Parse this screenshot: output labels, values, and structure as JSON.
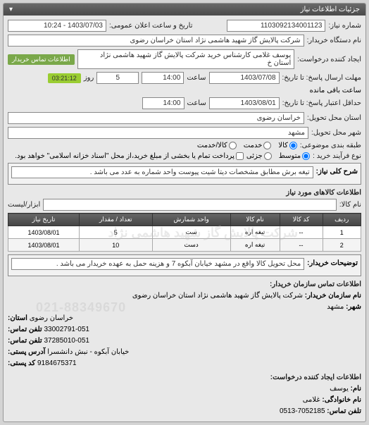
{
  "panel_title": "جزئیات اطلاعات نیاز",
  "top": {
    "req_number_label": "شماره نیاز:",
    "req_number": "1103092134001123",
    "public_date_label": "تاریخ و ساعت اعلان عمومی:",
    "public_date": "1403/07/03 - 10:24",
    "org_label": "نام دستگاه خریدار:",
    "org": "شرکت پالایش گاز شهید هاشمی نژاد   استان خراسان رضوی",
    "creator_label": "ایجاد کننده درخواست:",
    "creator": "یوسف غلامی کارشناس خرید شرکت پالایش گاز شهید هاشمی نژاد   استان خ",
    "contact_badge": "اطلاعات تماس خریدار",
    "deadline_label": "مهلت ارسال پاسخ: تا تاریخ:",
    "deadline_date": "1403/07/08",
    "time_label": "ساعت",
    "deadline_time": "14:00",
    "days_remaining": "5",
    "day_word": "روز",
    "time_remaining": "03:21:12",
    "remaining_label": "ساعت باقی مانده",
    "validity_label": "حداقل اعتبار پاسخ: تا تاریخ:",
    "validity_date": "1403/08/01",
    "validity_time": "14:00",
    "province_label": "استان محل تحویل:",
    "province": "خراسان رضوی",
    "city_label": "شهر محل تحویل:",
    "city": "مشهد",
    "sort_label": "طبقه بندی موضوعی:",
    "sort_opts": {
      "goods": "کالا",
      "service": "خدمت",
      "both": "کالا/خدمت"
    },
    "qtype_label": "نوع فرآیند خرید :",
    "qtype_opts": {
      "mid": "متوسط",
      "small": "جزئی"
    },
    "qtype_note": "پرداخت تمام یا بخشی از مبلغ خرید،از محل \"اسناد خزانه اسلامی\" خواهد بود.",
    "desc_label": "شرح کلی نیاز:",
    "desc": "تیغه برش مطابق مشخصات دیتا شیت پیوست واحد شماره به عدد می باشد ."
  },
  "goods": {
    "title": "اطلاعات کالاهای مورد نیاز",
    "search_label": "نام کالا:",
    "tools_label": "ابزار/لیست",
    "columns": [
      "ردیف",
      "کد کالا",
      "نام کالا",
      "واحد شمارش",
      "تعداد / مقدار",
      "تاریخ نیاز"
    ],
    "rows": [
      [
        "1",
        "--",
        "تیغه اره",
        "ست",
        "5",
        "1403/08/01"
      ],
      [
        "2",
        "--",
        "تیغه اره",
        "دست",
        "10",
        "1403/08/01"
      ]
    ],
    "watermark": "شرکت پالایش گاز شهید هاشمی نژاد",
    "buyer_note_label": "توضیحات خریدار:",
    "buyer_note": "محل تحویل کالا واقع در مشهد خیابان آبکوه 7 و هزینه حمل به عهده خریدار می باشد ."
  },
  "contact": {
    "title": "اطلاعات تماس سازمان خریدار:",
    "org_label": "نام سازمان خریدار:",
    "org": "شرکت پالایش گاز شهید هاشمی نژاد استان خراسان رضوی",
    "city_label": "شهر:",
    "city": "مشهد",
    "province_label": "استان:",
    "province": "خراسان رضوی",
    "phone_label": "تلفن تماس:",
    "phone": "33002791-051",
    "fax_label": "تلفن تماس:",
    "fax": "37285010-051",
    "addr_label": "آدرس پستی:",
    "addr": "خیابان آبکوه - نبش دانشسرا",
    "post_label": "کد پستی:",
    "post": "9184675371",
    "watermark_phone": "021-88349670",
    "creator_title": "اطلاعات ایجاد کننده درخواست:",
    "first_label": "نام:",
    "first": "یوسف",
    "last_label": "نام خانوادگی:",
    "last": "غلامی",
    "c_phone_label": "تلفن تماس:",
    "c_phone": "7052185-0513"
  }
}
